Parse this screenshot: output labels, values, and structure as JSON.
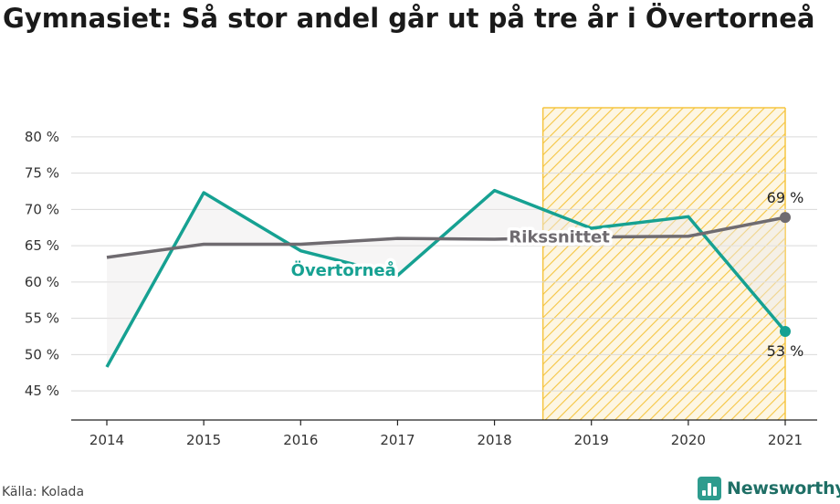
{
  "chart_data": {
    "type": "line",
    "title": "Gymnasiet: Så stor andel går ut på tre år i Övertorneå",
    "x": [
      "2014",
      "2015",
      "2016",
      "2017",
      "2018",
      "2019",
      "2020",
      "2021"
    ],
    "ylim": [
      41,
      84
    ],
    "yticks": [
      45,
      50,
      55,
      60,
      65,
      70,
      75,
      80
    ],
    "ytick_labels": [
      "45 %",
      "50 %",
      "55 %",
      "60 %",
      "65 %",
      "70 %",
      "75 %",
      "80 %"
    ],
    "grid": true,
    "series": [
      {
        "name": "Övertorneå",
        "color": "#16a192",
        "values": [
          48.3,
          72.3,
          64.3,
          60.9,
          72.6,
          67.4,
          69.0,
          53.2
        ]
      },
      {
        "name": "Rikssnittet",
        "color": "#6f6b70",
        "values": [
          63.4,
          65.2,
          65.2,
          66.0,
          65.9,
          66.2,
          66.3,
          68.9
        ]
      }
    ],
    "highlight_range": [
      "2019",
      "2021"
    ],
    "highlight_color": "#f5c542",
    "end_labels": [
      {
        "series": "Rikssnittet",
        "x": "2021",
        "text": "69 %"
      },
      {
        "series": "Övertorneå",
        "x": "2021",
        "text": "53 %"
      }
    ]
  },
  "source": "Källa: Kolada",
  "brand": "Newsworthy"
}
